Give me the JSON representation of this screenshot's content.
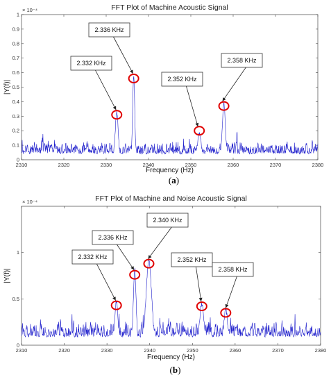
{
  "chart_data": [
    {
      "type": "line",
      "title": "FFT Plot of Machine Acoustic Signal",
      "xlabel": "Frequency (Hz)",
      "ylabel": "|Y(f)|",
      "y_exponent": "× 10⁻⁴",
      "xlim": [
        2310,
        2380
      ],
      "ylim": [
        0,
        1
      ],
      "xticks": [
        "2310",
        "2320",
        "2330",
        "2340",
        "2350",
        "2360",
        "2370",
        "2380"
      ],
      "yticks": [
        "0",
        "0.1",
        "0.2",
        "0.3",
        "0.4",
        "0.5",
        "0.6",
        "0.7",
        "0.8",
        "0.9",
        "1"
      ],
      "noise_floor": [
        0.02,
        0.17
      ],
      "peaks": [
        {
          "x": 2332.5,
          "y": 0.31,
          "width": 0.5
        },
        {
          "x": 2336.5,
          "y": 0.56,
          "width": 0.35
        },
        {
          "x": 2352.0,
          "y": 0.17,
          "width": 0.6
        },
        {
          "x": 2357.8,
          "y": 0.37,
          "width": 0.5
        }
      ],
      "annotations": [
        {
          "label": "2.332 KHz",
          "x": 2332.5,
          "y": 0.31
        },
        {
          "label": "2.336 KHz",
          "x": 2336.5,
          "y": 0.56
        },
        {
          "label": "2.352 KHz",
          "x": 2352.0,
          "y": 0.2
        },
        {
          "label": "2.358 KHz",
          "x": 2357.8,
          "y": 0.37
        }
      ],
      "caption_letter": "a"
    },
    {
      "type": "line",
      "title": "FFT Plot of Machine and Noise Acoustic Signal",
      "xlabel": "Frequency (Hz)",
      "ylabel": "|Y(f)|",
      "y_exponent": "× 10⁻⁴",
      "xlim": [
        2310,
        2380
      ],
      "ylim": [
        0,
        1.5
      ],
      "xticks": [
        "2310",
        "2320",
        "2330",
        "2340",
        "2350",
        "2360",
        "2370",
        "2380"
      ],
      "yticks": [
        "0",
        "0.5",
        "1"
      ],
      "noise_floor": [
        0.05,
        0.35
      ],
      "peaks": [
        {
          "x": 2332.2,
          "y": 0.45,
          "width": 0.5
        },
        {
          "x": 2336.5,
          "y": 0.78,
          "width": 0.45
        },
        {
          "x": 2339.8,
          "y": 0.88,
          "width": 0.9
        },
        {
          "x": 2352.2,
          "y": 0.42,
          "width": 0.7
        },
        {
          "x": 2357.8,
          "y": 0.36,
          "width": 0.6
        }
      ],
      "annotations": [
        {
          "label": "2.332 KHz",
          "x": 2332.2,
          "y": 0.43
        },
        {
          "label": "2.336 KHz",
          "x": 2336.5,
          "y": 0.76
        },
        {
          "label": "2.340 KHz",
          "x": 2339.8,
          "y": 0.88
        },
        {
          "label": "2.352 KHz",
          "x": 2352.2,
          "y": 0.42
        },
        {
          "label": "2.358 KHz",
          "x": 2357.8,
          "y": 0.35
        }
      ],
      "caption_letter": "b"
    }
  ]
}
